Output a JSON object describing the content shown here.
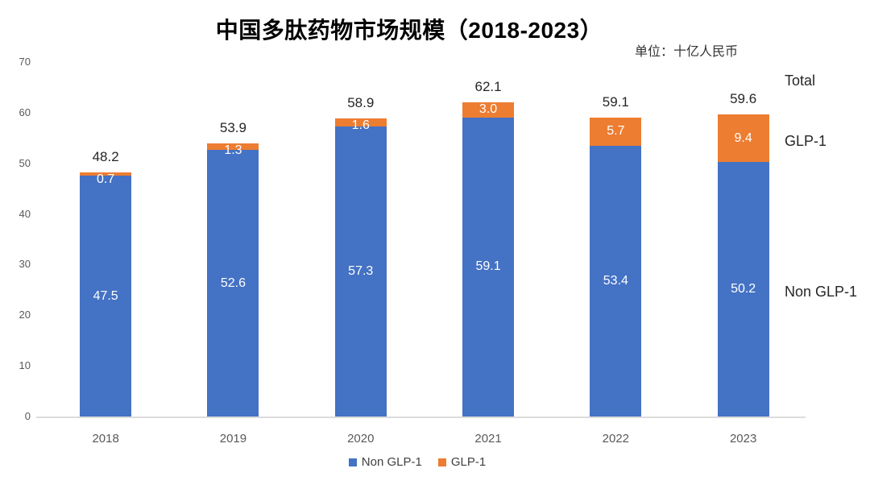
{
  "unit_label": "单位：十亿人民币",
  "chart_data": {
    "type": "bar",
    "stacked": true,
    "title": "中国多肽药物市场规模（2018-2023）",
    "categories": [
      "2018",
      "2019",
      "2020",
      "2021",
      "2022",
      "2023"
    ],
    "series": [
      {
        "name": "Non GLP-1",
        "color": "#4472C4",
        "values": [
          47.5,
          52.6,
          57.3,
          59.1,
          53.4,
          50.2
        ]
      },
      {
        "name": "GLP-1",
        "color": "#ED7D31",
        "values": [
          0.7,
          1.3,
          1.6,
          3.0,
          5.7,
          9.4
        ]
      }
    ],
    "totals": [
      48.2,
      53.9,
      58.9,
      62.1,
      59.1,
      59.6
    ],
    "xlabel": "",
    "ylabel": "",
    "ylim": [
      0,
      70
    ],
    "y_ticks": [
      0,
      10,
      20,
      30,
      40,
      50,
      60,
      70
    ],
    "grid": false,
    "legend_position": "bottom",
    "annotations": [
      "Total",
      "GLP-1",
      "Non GLP-1"
    ],
    "bar_label_color": "#FFFFFF",
    "axis_line_color": "#DCDCDC",
    "tick_text_color": "#595959"
  }
}
